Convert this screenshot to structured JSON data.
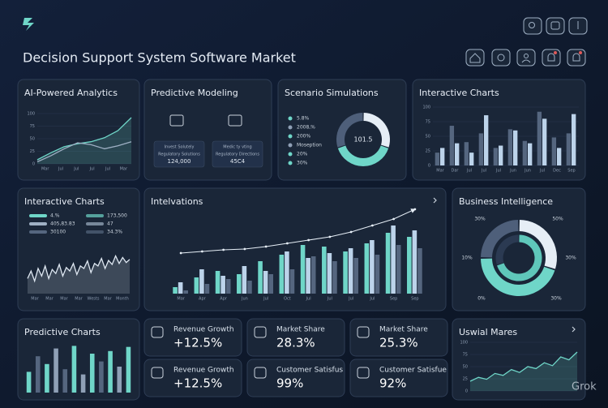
{
  "header": {
    "title": "Decision Support System Software Market"
  },
  "ai": {
    "title": "AI-Powered Analytics",
    "type": "line",
    "ylim": [
      0,
      100
    ],
    "yticks": [
      0,
      25,
      50,
      75,
      100
    ],
    "x_labels": [
      "Mar",
      "Jul",
      "Jul",
      "Jul",
      "Jul",
      "Mar"
    ],
    "series": [
      {
        "color": "#6fd6c8",
        "values": [
          8,
          22,
          34,
          40,
          44,
          52,
          66,
          92
        ],
        "area": true
      },
      {
        "color": "#9fb0c4",
        "values": [
          4,
          16,
          30,
          42,
          38,
          30,
          36,
          44
        ]
      }
    ]
  },
  "pm": {
    "title": "Predictive Modeling",
    "cards": [
      {
        "lines": [
          "Invest Solutely",
          "Regulatory Solutions",
          "124,000"
        ]
      },
      {
        "lines": [
          "Medic ty vting",
          "Regulatory Directions",
          "45C4"
        ]
      }
    ]
  },
  "ss": {
    "title": "Scenario Simulations",
    "type": "donut",
    "center_label": "101.5",
    "legend": [
      {
        "label": "5.8%",
        "color": "#6fd6c8"
      },
      {
        "label": "2008,%",
        "color": "#8fa0b6"
      },
      {
        "label": "200%",
        "color": "#6fd6c8"
      },
      {
        "label": "Moseption",
        "color": "#8fa0b6"
      },
      {
        "label": "20%",
        "color": "#6fd6c8"
      },
      {
        "label": "30%",
        "color": "#6fd6c8"
      }
    ],
    "values": [
      30,
      40,
      30
    ],
    "colors": [
      "#e6eef6",
      "#6fd6c8",
      "#4e5f7a"
    ]
  },
  "ic1": {
    "title": "Interactive Charts",
    "type": "bar",
    "ylim": [
      0,
      100
    ],
    "yticks": [
      0,
      25,
      50,
      75,
      100
    ],
    "x_labels": [
      "Mar",
      "Dar",
      "Jul",
      "Jul",
      "Jul",
      "Jun",
      "Jun",
      "Jul",
      "Dec",
      "Sep"
    ],
    "series": [
      {
        "color": "#55667f",
        "values": [
          22,
          68,
          40,
          55,
          30,
          62,
          42,
          92,
          48,
          55
        ]
      },
      {
        "color": "#bcd3ea",
        "values": [
          30,
          38,
          22,
          86,
          34,
          60,
          38,
          80,
          30,
          88
        ]
      }
    ]
  },
  "ic2": {
    "title": "Interactive Charts",
    "type": "line",
    "legend": [
      {
        "label": "4.%",
        "value": "173,500",
        "color": "#6fd6c8"
      },
      {
        "label": "405,83.83",
        "value": "47",
        "color": "#9fb0c4"
      },
      {
        "label": "30100",
        "value": "34.3%",
        "color": "#55667f"
      }
    ],
    "ylim": [
      0,
      100
    ],
    "x_labels": [
      "Mar",
      "Mar",
      "Mar",
      "Mar",
      "Wests",
      "Mar",
      "Month"
    ],
    "series": [
      {
        "color": "#dfe8f2",
        "area": true,
        "values": [
          30,
          45,
          25,
          50,
          35,
          55,
          30,
          48,
          40,
          58,
          35,
          52,
          45,
          60,
          38,
          55,
          50,
          65,
          42,
          60,
          55,
          70,
          50,
          66,
          58,
          75,
          60,
          72,
          62,
          68
        ]
      }
    ]
  },
  "int": {
    "title": "Intelvations",
    "type": "bar",
    "ylim": [
      0,
      100
    ],
    "x_labels": [
      "Mar",
      "Apr",
      "Apr",
      "Jun",
      "Jul",
      "Oct",
      "Jul",
      "Jul",
      "Jul",
      "Jul",
      "Sep",
      "Sep"
    ],
    "series": [
      {
        "color": "#6fd6c8",
        "values": [
          8,
          20,
          28,
          24,
          40,
          48,
          60,
          58,
          52,
          62,
          75,
          70
        ]
      },
      {
        "color": "#bcd3ea",
        "values": [
          14,
          30,
          22,
          34,
          28,
          52,
          44,
          50,
          56,
          66,
          84,
          78
        ]
      },
      {
        "color": "#55667f",
        "values": [
          4,
          12,
          18,
          16,
          24,
          30,
          46,
          40,
          44,
          48,
          60,
          56
        ]
      }
    ],
    "trend": {
      "color": "#e6eef6",
      "values": [
        50,
        52,
        54,
        55,
        58,
        62,
        66,
        70,
        76,
        84,
        92,
        104
      ]
    }
  },
  "bi": {
    "title": "Business Intelligence",
    "type": "donut",
    "labels": [
      "30%",
      "50%",
      "10%",
      "30%",
      "0%",
      "30%"
    ],
    "outer": {
      "values": [
        30,
        45,
        25
      ],
      "colors": [
        "#e6eef6",
        "#6fd6c8",
        "#4e5f7a"
      ]
    },
    "inner": {
      "values": [
        70,
        30
      ],
      "colors": [
        "#5fc7ba",
        "#2b3a52"
      ]
    }
  },
  "pc": {
    "title": "Predictive Charts",
    "type": "bar",
    "ylim": [
      0,
      100
    ],
    "values": [
      40,
      70,
      55,
      85,
      45,
      90,
      35,
      75,
      60,
      80,
      50,
      88
    ],
    "colors": [
      "#6fd6c8",
      "#55667f",
      "#6fd6c8",
      "#8fa0b6",
      "#55667f",
      "#6fd6c8",
      "#8fa0b6",
      "#6fd6c8",
      "#55667f",
      "#6fd6c8",
      "#8fa0b6",
      "#6fd6c8"
    ]
  },
  "kpis": [
    {
      "label": "Revenue Growth",
      "value": "+12.5%"
    },
    {
      "label": "Market Share",
      "value": "28.3%"
    },
    {
      "label": "Market Share",
      "value": "25.3%"
    },
    {
      "label": "Revenue Growth",
      "value": "+12.5%"
    },
    {
      "label": "Customer Satisfus",
      "value": "99%"
    },
    {
      "label": "Customer Satisfue",
      "value": "92%"
    }
  ],
  "um": {
    "title": "Uswial Mares",
    "type": "line",
    "ylim": [
      0,
      100
    ],
    "yticks": [
      0,
      25,
      50,
      75,
      100
    ],
    "series": [
      {
        "color": "#6fd6c8",
        "area": true,
        "values": [
          20,
          28,
          24,
          36,
          32,
          44,
          38,
          50,
          46,
          58,
          52,
          70,
          64,
          80
        ]
      }
    ]
  },
  "watermark": "Grok"
}
